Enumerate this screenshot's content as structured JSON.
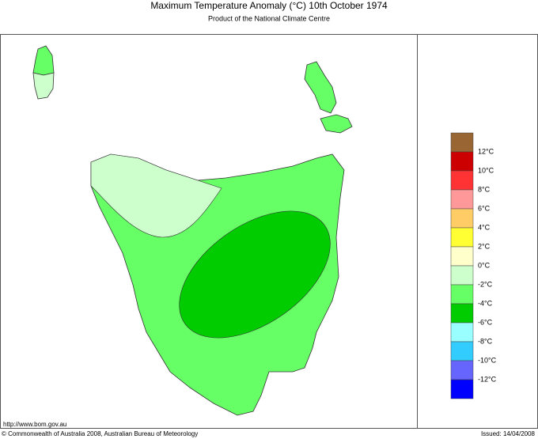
{
  "header": {
    "title": "Maximum Temperature Anomaly (°C)  10th October 1974",
    "subtitle": "Product of the National Climate Centre"
  },
  "legend": {
    "colors": [
      "#996633",
      "#cc0000",
      "#ff3333",
      "#ff9999",
      "#ffcc66",
      "#ffff33",
      "#ffffcc",
      "#ccffcc",
      "#66ff66",
      "#00cc00",
      "#99ffff",
      "#33ccff",
      "#6666ff",
      "#0000ff"
    ],
    "labels": [
      "12°C",
      "10°C",
      "8°C",
      "6°C",
      "4°C",
      "2°C",
      "0°C",
      "-2°C",
      "-4°C",
      "-6°C",
      "-8°C",
      "-10°C",
      "-12°C"
    ]
  },
  "footer": {
    "url": "http://www.bom.gov.au",
    "copyright": "© Commonwealth of Australia 2008, Australian Bureau of Meteorology",
    "issued": "Issued: 14/04/2008"
  }
}
